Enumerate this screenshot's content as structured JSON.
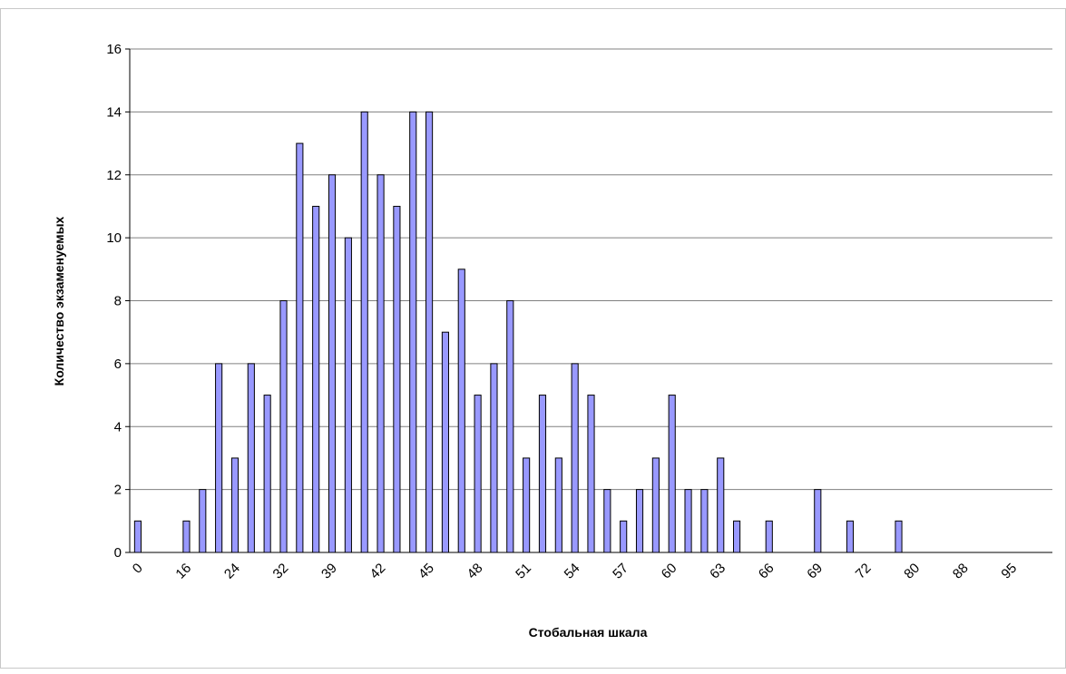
{
  "chart_data": {
    "type": "bar",
    "xlabel": "Стобальная шкала",
    "ylabel": "Количество экзаменуемых",
    "ylim": [
      0,
      16
    ],
    "yticks": [
      0,
      2,
      4,
      6,
      8,
      10,
      12,
      14,
      16
    ],
    "grid": "horizontal",
    "legend": "none",
    "bar_color": "#9999FF",
    "bar_edge_color": "#000000",
    "grid_color": "#808080",
    "x_tick_labels": [
      "0",
      "16",
      "24",
      "32",
      "39",
      "42",
      "45",
      "48",
      "51",
      "54",
      "57",
      "60",
      "63",
      "66",
      "69",
      "72",
      "80",
      "88",
      "95"
    ],
    "values": [
      1,
      0,
      0,
      1,
      2,
      6,
      3,
      6,
      5,
      8,
      13,
      11,
      12,
      10,
      14,
      12,
      11,
      14,
      14,
      7,
      9,
      5,
      6,
      8,
      3,
      5,
      3,
      6,
      5,
      2,
      1,
      2,
      3,
      5,
      2,
      2,
      3,
      1,
      0,
      1,
      0,
      0,
      2,
      0,
      1,
      0,
      0,
      1,
      0,
      0,
      0,
      0,
      0,
      0,
      0,
      0,
      0
    ]
  }
}
